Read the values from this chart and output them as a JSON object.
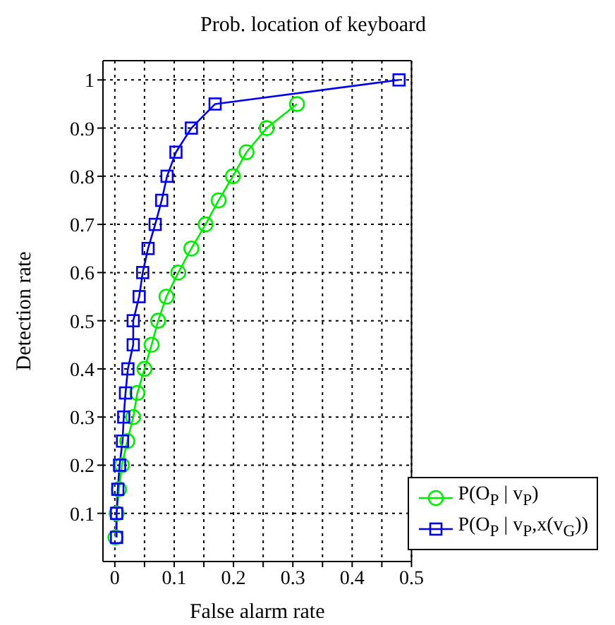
{
  "chart_data": {
    "type": "line",
    "title": "Prob. location of keyboard",
    "xlabel": "False alarm rate",
    "ylabel": "Detection rate",
    "xlim": [
      -0.02,
      0.5
    ],
    "ylim": [
      0,
      1.04
    ],
    "xticks": [
      0,
      {
        "value": 0.05,
        "label": null
      },
      0.1,
      {
        "value": 0.15,
        "label": null
      },
      0.2,
      {
        "value": 0.25,
        "label": null
      },
      0.3,
      {
        "value": 0.35,
        "label": null
      },
      0.4,
      {
        "value": 0.45,
        "label": null
      },
      0.5
    ],
    "yticks": [
      0.1,
      0.2,
      0.3,
      0.4,
      0.5,
      0.6,
      0.7,
      0.8,
      0.9,
      1
    ],
    "grid": true,
    "legend": "bottom right",
    "line_style": "solid",
    "series": [
      {
        "name": "P(O$_{P}$ | v$_{P}$)",
        "color": "#00ee00",
        "marker": "circle",
        "x": [
          0.001,
          0.003,
          0.007,
          0.012,
          0.021,
          0.031,
          0.038,
          0.05,
          0.062,
          0.073,
          0.087,
          0.107,
          0.129,
          0.153,
          0.175,
          0.199,
          0.222,
          0.256,
          0.307
        ],
        "values": [
          0.05,
          0.1,
          0.15,
          0.2,
          0.25,
          0.3,
          0.35,
          0.4,
          0.45,
          0.5,
          0.55,
          0.6,
          0.65,
          0.7,
          0.75,
          0.8,
          0.85,
          0.9,
          0.95
        ]
      },
      {
        "name": "P(O$_{P}$ | v$_{P}$,x(v$_{G}$))",
        "color": "#0000ee",
        "marker": "square",
        "x": [
          0.003,
          0.003,
          0.005,
          0.008,
          0.013,
          0.015,
          0.018,
          0.022,
          0.031,
          0.031,
          0.041,
          0.047,
          0.056,
          0.068,
          0.079,
          0.088,
          0.103,
          0.129,
          0.169,
          0.479
        ],
        "values": [
          0.05,
          0.1,
          0.15,
          0.2,
          0.25,
          0.3,
          0.35,
          0.4,
          0.45,
          0.5,
          0.55,
          0.6,
          0.65,
          0.7,
          0.75,
          0.8,
          0.85,
          0.9,
          0.95,
          1.0
        ]
      }
    ]
  }
}
